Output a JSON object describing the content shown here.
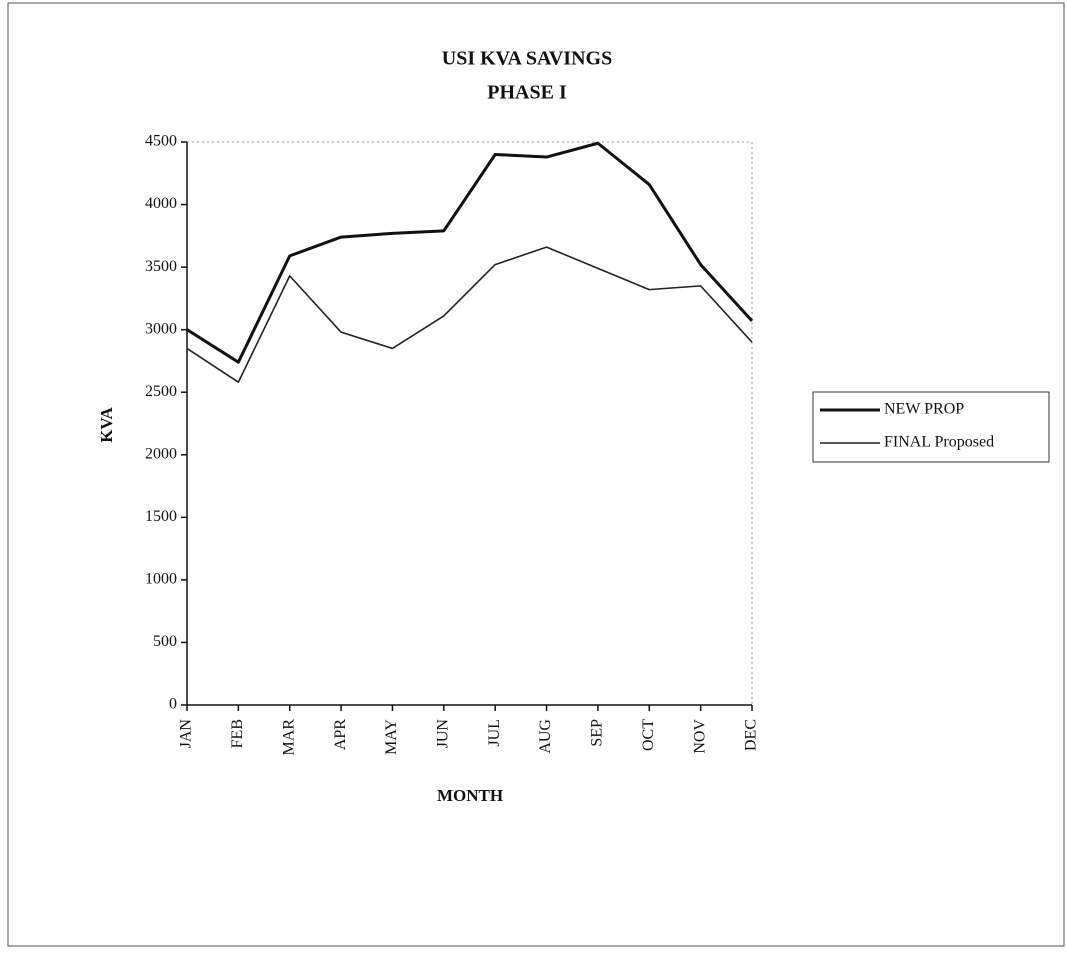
{
  "chart_data": {
    "type": "line",
    "title": "USI KVA SAVINGS",
    "subtitle": "PHASE I",
    "x_label": "MONTH",
    "y_label": "KVA",
    "categories": [
      "JAN",
      "FEB",
      "MAR",
      "APR",
      "MAY",
      "JUN",
      "JUL",
      "AUG",
      "SEP",
      "OCT",
      "NOV",
      "DEC"
    ],
    "series": [
      {
        "name": "NEW PROP",
        "color": "#111111",
        "values": [
          3000,
          2740,
          3590,
          3740,
          3770,
          3790,
          4400,
          4380,
          4490,
          4160,
          3520,
          3070
        ]
      },
      {
        "name": "FINAL Proposed",
        "color": "#222222",
        "values": [
          2850,
          2580,
          3430,
          2980,
          2850,
          3110,
          3520,
          3660,
          3490,
          3320,
          3350,
          2900
        ]
      }
    ],
    "ylim": [
      0,
      4500
    ],
    "yticks": [
      0,
      500,
      1000,
      1500,
      2000,
      2500,
      3000,
      3500,
      4000,
      4500
    ],
    "legend": "right"
  }
}
